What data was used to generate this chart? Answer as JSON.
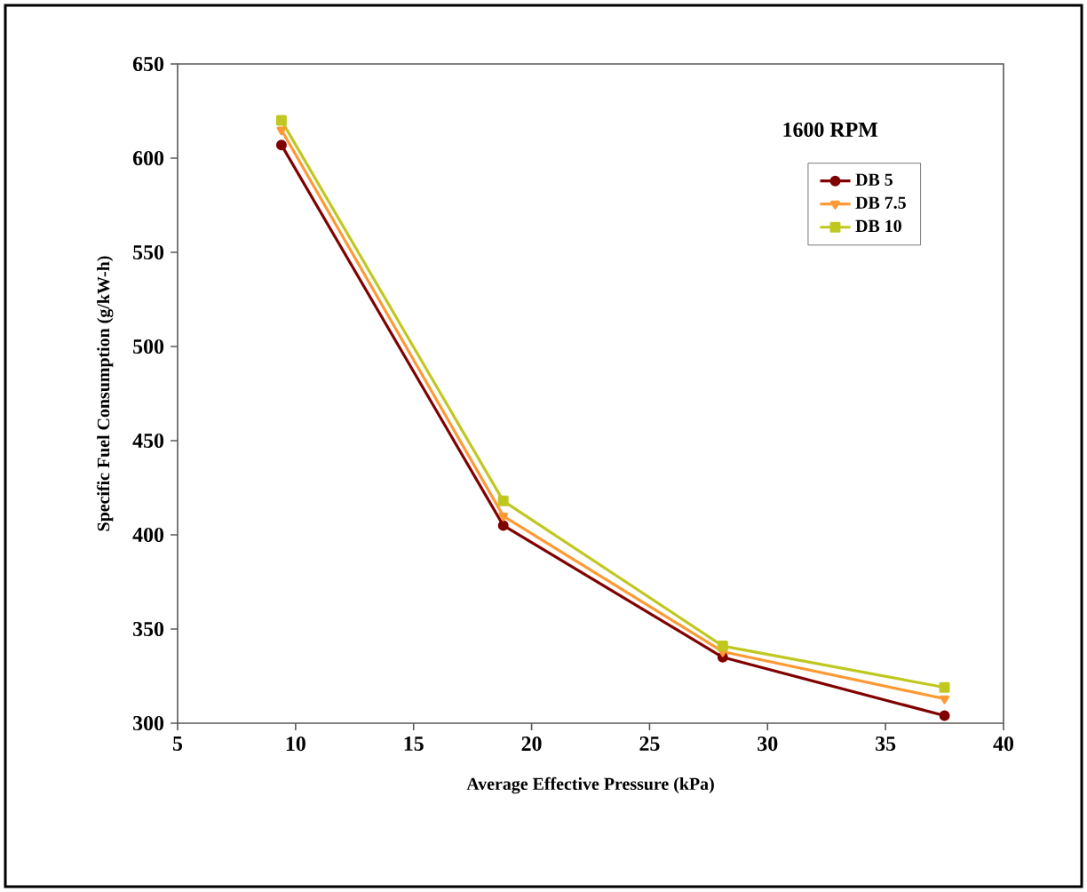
{
  "chart_data": {
    "type": "line",
    "xlabel": "Average Effective Pressure (kPa)",
    "ylabel": "Specific Fuel Consumption (g/kW-h)",
    "legend_title": "1600 RPM",
    "legend": "top right",
    "grid": false,
    "line_style": "solid",
    "x": [
      9.4,
      18.8,
      28.1,
      37.5
    ],
    "xlim": [
      5,
      40
    ],
    "xticks": [
      5,
      10,
      15,
      20,
      25,
      30,
      35,
      40
    ],
    "ylim": [
      300,
      650
    ],
    "yticks": [
      300,
      350,
      400,
      450,
      500,
      550,
      600,
      650
    ],
    "series": [
      {
        "name": "DB 5",
        "color": "#800000",
        "marker": "circle",
        "values": [
          607,
          405,
          335,
          304
        ]
      },
      {
        "name": "DB 7.5",
        "color": "#ff9933",
        "marker": "triangle",
        "values": [
          615,
          410,
          338,
          313
        ]
      },
      {
        "name": "DB 10",
        "color": "#c0c820",
        "marker": "square",
        "values": [
          620,
          418,
          341,
          319
        ]
      }
    ]
  }
}
